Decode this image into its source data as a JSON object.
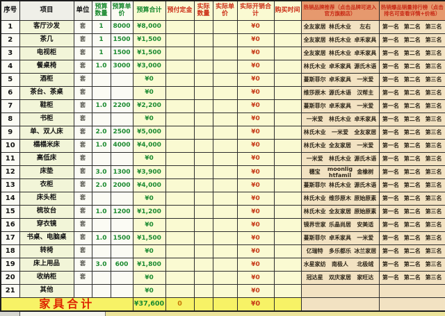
{
  "table": {
    "headers": {
      "index": "序号",
      "item": "项目",
      "unit": "单位",
      "budget_qty": "预算数量",
      "budget_price": "预算单价",
      "budget_total": "预算合计",
      "deposit": "预付定金",
      "actual_qty": "实际数量",
      "actual_price": "实际单价",
      "actual_total": "实际开销合计",
      "buy_time": "购买时间",
      "brand_rec": "热销品牌推荐（点击品牌可进入官方旗舰店）",
      "ranking": "热销爆品销量排行榜（点击排名可查看详情+价格）"
    },
    "rows": [
      {
        "no": "1",
        "item": "客厅沙发",
        "unit": "套",
        "qty": "1",
        "price": "8000",
        "total": "¥8,000",
        "actual_total": "¥0",
        "brands": [
          "全友家居",
          "林氏木业",
          "左右"
        ],
        "ranks": [
          "第一名",
          "第二名",
          "第三名"
        ]
      },
      {
        "no": "2",
        "item": "茶几",
        "unit": "套",
        "qty": "1",
        "price": "1500",
        "total": "¥1,500",
        "actual_total": "¥0",
        "brands": [
          "全友家居",
          "林氏木业",
          "卓禾家具"
        ],
        "ranks": [
          "第一名",
          "第二名",
          "第三名"
        ]
      },
      {
        "no": "3",
        "item": "电视柜",
        "unit": "套",
        "qty": "1",
        "price": "1500",
        "total": "¥1,500",
        "actual_total": "¥0",
        "brands": [
          "全友家居",
          "林氏木业",
          "卓禾家具"
        ],
        "ranks": [
          "第一名",
          "第二名",
          "第三名"
        ]
      },
      {
        "no": "4",
        "item": "餐桌椅",
        "unit": "套",
        "qty": "1.0",
        "price": "3000",
        "total": "¥3,000",
        "actual_total": "¥0",
        "brands": [
          "林氏木业",
          "卓禾家具",
          "源氏木语"
        ],
        "ranks": [
          "第一名",
          "第二名",
          "第三名"
        ]
      },
      {
        "no": "5",
        "item": "酒柜",
        "unit": "套",
        "qty": "",
        "price": "",
        "total": "¥0",
        "actual_total": "¥0",
        "brands": [
          "蔓斯菲尔",
          "卓禾家具",
          "一米爱"
        ],
        "ranks": [
          "第一名",
          "第二名",
          "第三名"
        ]
      },
      {
        "no": "6",
        "item": "茶台、茶桌",
        "unit": "套",
        "qty": "",
        "price": "",
        "total": "¥0",
        "actual_total": "¥0",
        "brands": [
          "维莎原木",
          "源氏木语",
          "汉帮主"
        ],
        "ranks": [
          "第一名",
          "第二名",
          "第三名"
        ]
      },
      {
        "no": "7",
        "item": "鞋柜",
        "unit": "套",
        "qty": "1.0",
        "price": "2200",
        "total": "¥2,200",
        "actual_total": "¥0",
        "brands": [
          "蔓斯菲尔",
          "卓禾家具",
          "一米爱"
        ],
        "ranks": [
          "第一名",
          "第二名",
          "第三名"
        ]
      },
      {
        "no": "8",
        "item": "书柜",
        "unit": "套",
        "qty": "",
        "price": "",
        "total": "¥0",
        "actual_total": "¥0",
        "brands": [
          "一米爱",
          "林氏木业",
          "卓禾家具"
        ],
        "ranks": [
          "第一名",
          "第二名",
          "第三名"
        ]
      },
      {
        "no": "9",
        "item": "单、双人床",
        "unit": "套",
        "qty": "2.0",
        "price": "2500",
        "total": "¥5,000",
        "actual_total": "¥0",
        "brands": [
          "林氏木业",
          "一米爱",
          "全友家居"
        ],
        "ranks": [
          "第一名",
          "第二名",
          "第三名"
        ]
      },
      {
        "no": "10",
        "item": "榻榻米床",
        "unit": "套",
        "qty": "1.0",
        "price": "4000",
        "total": "¥4,000",
        "actual_total": "¥0",
        "brands": [
          "林氏木业",
          "全友家居",
          "一米爱"
        ],
        "ranks": [
          "第一名",
          "第二名",
          "第三名"
        ]
      },
      {
        "no": "11",
        "item": "高低床",
        "unit": "套",
        "qty": "",
        "price": "",
        "total": "¥0",
        "actual_total": "¥0",
        "brands": [
          "一米爱",
          "林氏木业",
          "源氏木语"
        ],
        "ranks": [
          "第一名",
          "第二名",
          "第三名"
        ]
      },
      {
        "no": "12",
        "item": "床垫",
        "unit": "套",
        "qty": "3.0",
        "price": "1300",
        "total": "¥3,900",
        "actual_total": "¥0",
        "brands": [
          "穗宝",
          "moonlightfamil",
          "金橡树"
        ],
        "ranks": [
          "第一名",
          "第二名",
          "第三名"
        ]
      },
      {
        "no": "13",
        "item": "衣柜",
        "unit": "套",
        "qty": "2.0",
        "price": "2000",
        "total": "¥4,000",
        "actual_total": "¥0",
        "brands": [
          "蔓斯菲尔",
          "林氏木业",
          "源氏木语"
        ],
        "ranks": [
          "第一名",
          "第二名",
          "第三名"
        ]
      },
      {
        "no": "14",
        "item": "床头柜",
        "unit": "套",
        "qty": "",
        "price": "",
        "total": "¥0",
        "actual_total": "¥0",
        "brands": [
          "林氏木业",
          "维莎原木",
          "原始原素"
        ],
        "ranks": [
          "第一名",
          "第二名",
          "第三名"
        ]
      },
      {
        "no": "15",
        "item": "梳妆台",
        "unit": "套",
        "qty": "1.0",
        "price": "1200",
        "total": "¥1,200",
        "actual_total": "¥0",
        "brands": [
          "林氏木业",
          "全友家居",
          "原始原素"
        ],
        "ranks": [
          "第一名",
          "第二名",
          "第三名"
        ]
      },
      {
        "no": "16",
        "item": "穿衣镜",
        "unit": "套",
        "qty": "",
        "price": "",
        "total": "¥0",
        "actual_total": "¥0",
        "brands": [
          "镜界世家",
          "乐晶尚居",
          "安美适"
        ],
        "ranks": [
          "第一名",
          "第二名",
          "第三名"
        ]
      },
      {
        "no": "17",
        "item": "书桌、电脑桌",
        "unit": "套",
        "qty": "1.0",
        "price": "1500",
        "total": "¥1,500",
        "actual_total": "¥0",
        "brands": [
          "蔓斯菲尔",
          "卓禾家具",
          "一米爱"
        ],
        "ranks": [
          "第一名",
          "第二名",
          "第三名"
        ]
      },
      {
        "no": "18",
        "item": "转椅",
        "unit": "套",
        "qty": "",
        "price": "",
        "total": "¥0",
        "actual_total": "¥0",
        "brands": [
          "亿瑞特",
          "多乐都乐",
          "冰兰家居"
        ],
        "ranks": [
          "第一名",
          "第二名",
          "第三名"
        ]
      },
      {
        "no": "19",
        "item": "床上用品",
        "unit": "套",
        "qty": "3.0",
        "price": "600",
        "total": "¥1,800",
        "actual_total": "¥0",
        "brands": [
          "水星家纺",
          "南极人",
          "北极绒"
        ],
        "ranks": [
          "第一名",
          "第二名",
          "第三名"
        ]
      },
      {
        "no": "20",
        "item": "收纳柜",
        "unit": "套",
        "qty": "",
        "price": "",
        "total": "¥0",
        "actual_total": "¥0",
        "brands": [
          "冠达星",
          "双庆家居",
          "家旺达"
        ],
        "ranks": [
          "第一名",
          "第二名",
          "第三名"
        ]
      },
      {
        "no": "21",
        "item": "其他",
        "unit": "",
        "qty": "",
        "price": "",
        "total": "¥0",
        "actual_total": "¥0",
        "brands": [],
        "ranks": []
      }
    ],
    "footer": {
      "label": "家具合计",
      "budget_total": "¥37,600",
      "deposit": "0",
      "actual_total": "¥0"
    }
  },
  "colors": {
    "budget_green": "#1b8a30",
    "actual_red": "#c63a18",
    "header_red": "#cc3018",
    "footer_yellow": "#f7f266",
    "body_yellow": "#fafad2",
    "item_yellow_green": "#f2f5d8",
    "right_header_orange": "#e6996e",
    "right_body_tan": "#f2e2c2",
    "footer_label_red": "#dd2200"
  }
}
